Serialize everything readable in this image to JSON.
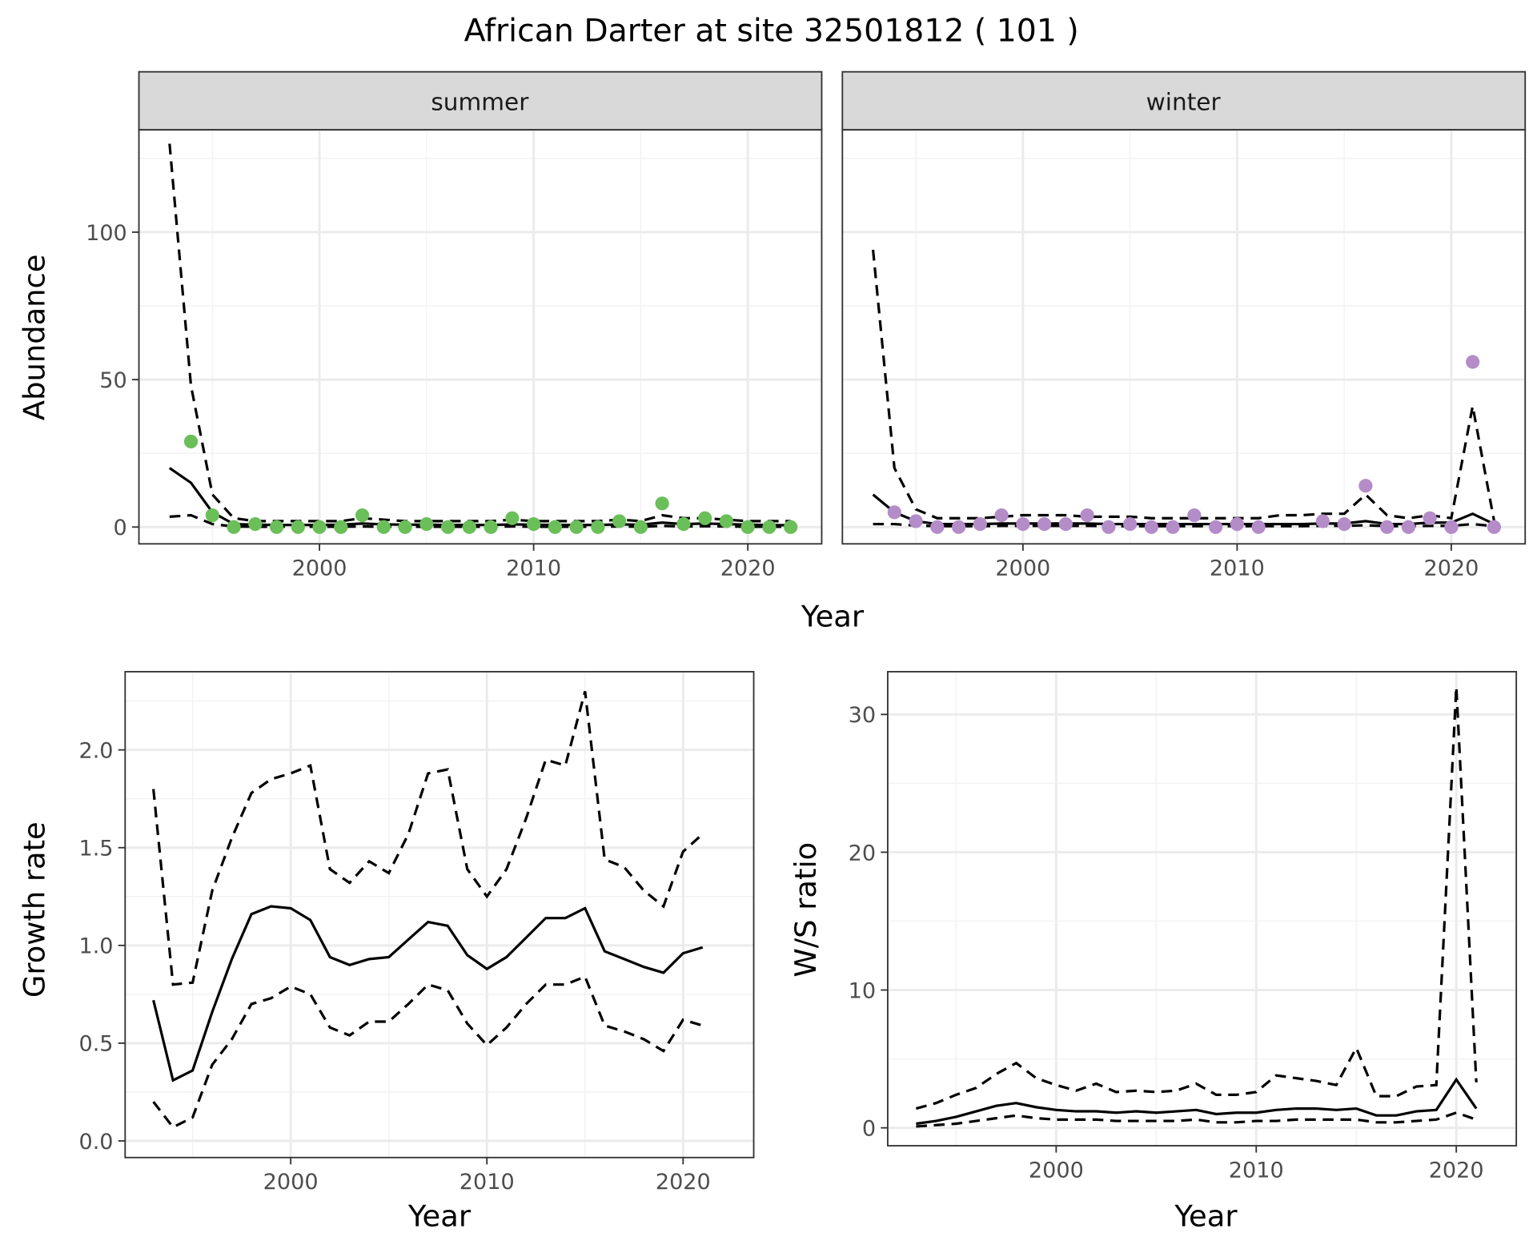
{
  "title": "African Darter at site 32501812 ( 101 )",
  "colors": {
    "summer_points": "#6abf59",
    "winter_points": "#b48cc8",
    "lines": "#000000",
    "strip_bg": "#d9d9d9",
    "grid": "#ebebeb"
  },
  "chart_data": [
    {
      "type": "scatter+line",
      "facet": "summer",
      "xlabel": "Year",
      "ylabel": "Abundance",
      "xlim": [
        1991.57,
        2023.45
      ],
      "ylim": [
        -5.7,
        134.7
      ],
      "xticks": [
        2000,
        2010,
        2020
      ],
      "yticks": [
        0,
        50,
        100
      ],
      "grid": true,
      "points": {
        "x": [
          1994,
          1995,
          1996,
          1997,
          1998,
          1999,
          2000,
          2001,
          2002,
          2003,
          2004,
          2005,
          2006,
          2007,
          2008,
          2009,
          2010,
          2011,
          2012,
          2013,
          2014,
          2015,
          2016,
          2017,
          2018,
          2019,
          2020,
          2021,
          2022
        ],
        "y": [
          29,
          4,
          0,
          1,
          0,
          0,
          0,
          0,
          4,
          0,
          0,
          1,
          0,
          0,
          0,
          3,
          1,
          0,
          0,
          0,
          2,
          0,
          8,
          1,
          3,
          2,
          0,
          0,
          0
        ]
      },
      "line_x": [
        1993,
        1994,
        1995,
        1996,
        1997,
        1998,
        1999,
        2000,
        2001,
        2002,
        2003,
        2004,
        2005,
        2006,
        2007,
        2008,
        2009,
        2010,
        2011,
        2012,
        2013,
        2014,
        2015,
        2016,
        2017,
        2018,
        2019,
        2020,
        2021,
        2022
      ],
      "estimate": [
        20,
        15,
        5,
        1,
        0.8,
        0.7,
        0.7,
        0.7,
        0.8,
        1.2,
        0.9,
        0.8,
        0.8,
        0.7,
        0.7,
        0.7,
        0.9,
        0.8,
        0.7,
        0.7,
        0.7,
        0.9,
        0.8,
        1.5,
        1,
        1.2,
        1,
        0.8,
        0.7,
        0.6
      ],
      "upper": [
        130,
        48,
        11,
        3,
        2,
        2,
        2,
        2,
        2,
        3,
        2.5,
        2,
        2,
        2,
        2,
        2,
        2.5,
        2,
        2,
        2,
        2,
        2.5,
        2,
        4,
        3,
        3,
        2.5,
        2,
        2,
        2
      ],
      "lower": [
        3.5,
        4,
        1,
        0.2,
        0.1,
        0.1,
        0.1,
        0.1,
        0.1,
        0.2,
        0.1,
        0.1,
        0.1,
        0.1,
        0.1,
        0.1,
        0.2,
        0.1,
        0.1,
        0.1,
        0.1,
        0.2,
        0.1,
        0.4,
        0.2,
        0.3,
        0.2,
        0.1,
        0.1,
        0.1
      ]
    },
    {
      "type": "scatter+line",
      "facet": "winter",
      "xlabel": "Year",
      "ylabel": "Abundance",
      "xlim": [
        1991.57,
        2023.45
      ],
      "ylim": [
        -5.7,
        134.7
      ],
      "xticks": [
        2000,
        2010,
        2020
      ],
      "yticks": [
        0,
        50,
        100
      ],
      "grid": true,
      "points": {
        "x": [
          1994,
          1995,
          1996,
          1997,
          1998,
          1999,
          2000,
          2001,
          2002,
          2003,
          2004,
          2005,
          2006,
          2007,
          2008,
          2009,
          2010,
          2011,
          2014,
          2015,
          2016,
          2017,
          2018,
          2019,
          2020,
          2021,
          2022
        ],
        "y": [
          5,
          2,
          0,
          0,
          1,
          4,
          1,
          1,
          1,
          4,
          0,
          1,
          0,
          0,
          4,
          0,
          1,
          0,
          2,
          1,
          14,
          0,
          0,
          3,
          0,
          56,
          0
        ]
      },
      "line_x": [
        1993,
        1994,
        1995,
        1996,
        1997,
        1998,
        1999,
        2000,
        2001,
        2002,
        2003,
        2004,
        2005,
        2006,
        2007,
        2008,
        2009,
        2010,
        2011,
        2012,
        2013,
        2014,
        2015,
        2016,
        2017,
        2018,
        2019,
        2020,
        2021,
        2022
      ],
      "estimate": [
        11,
        5,
        2,
        1,
        1,
        1,
        1.2,
        1.2,
        1.2,
        1.2,
        1.2,
        1,
        1,
        1,
        1,
        1,
        1,
        1,
        1,
        1,
        1,
        1.2,
        1.2,
        2,
        1,
        1,
        1.5,
        1.5,
        4.5,
        1
      ],
      "upper": [
        94,
        20,
        6,
        3,
        3,
        3,
        3.5,
        4,
        4,
        4,
        3.5,
        3.5,
        3.5,
        3,
        3,
        3,
        3,
        3,
        3,
        4,
        4,
        4.5,
        4.5,
        11,
        4,
        3,
        4,
        3,
        41,
        2
      ],
      "lower": [
        1,
        1,
        0.5,
        0.3,
        0.3,
        0.3,
        0.4,
        0.4,
        0.4,
        0.4,
        0.4,
        0.3,
        0.3,
        0.3,
        0.3,
        0.3,
        0.3,
        0.3,
        0.3,
        0.3,
        0.3,
        0.4,
        0.4,
        0.6,
        0.3,
        0.3,
        0.4,
        0.4,
        1,
        0.3
      ]
    },
    {
      "type": "line",
      "xlabel": "Year",
      "ylabel": "Growth rate",
      "xlim": [
        1991.56,
        2023.6
      ],
      "ylim": [
        -0.085,
        2.4
      ],
      "xticks": [
        2000,
        2010,
        2020
      ],
      "yticks": [
        0.0,
        0.5,
        1.0,
        1.5,
        2.0
      ],
      "grid": true,
      "line_x": [
        1993,
        1994,
        1995,
        1996,
        1997,
        1998,
        1999,
        2000,
        2001,
        2002,
        2003,
        2004,
        2005,
        2006,
        2007,
        2008,
        2009,
        2010,
        2011,
        2012,
        2013,
        2014,
        2015,
        2016,
        2017,
        2018,
        2019,
        2020,
        2021
      ],
      "estimate": [
        0.72,
        0.31,
        0.36,
        0.66,
        0.93,
        1.16,
        1.2,
        1.19,
        1.13,
        0.94,
        0.9,
        0.93,
        0.94,
        1.03,
        1.12,
        1.1,
        0.95,
        0.88,
        0.94,
        1.04,
        1.14,
        1.14,
        1.19,
        0.97,
        0.93,
        0.89,
        0.86,
        0.96,
        0.99
      ],
      "upper": [
        1.8,
        0.8,
        0.81,
        1.28,
        1.55,
        1.78,
        1.85,
        1.88,
        1.92,
        1.39,
        1.32,
        1.43,
        1.37,
        1.57,
        1.88,
        1.9,
        1.39,
        1.25,
        1.39,
        1.65,
        1.95,
        1.92,
        2.3,
        1.44,
        1.4,
        1.28,
        1.2,
        1.48,
        1.57
      ],
      "lower": [
        0.2,
        0.07,
        0.12,
        0.39,
        0.52,
        0.7,
        0.73,
        0.79,
        0.75,
        0.58,
        0.54,
        0.61,
        0.61,
        0.7,
        0.8,
        0.77,
        0.6,
        0.49,
        0.58,
        0.7,
        0.8,
        0.8,
        0.84,
        0.59,
        0.56,
        0.52,
        0.46,
        0.62,
        0.59
      ]
    },
    {
      "type": "line",
      "xlabel": "Year",
      "ylabel": "W/S ratio",
      "xlim": [
        1991.58,
        2023.0
      ],
      "ylim": [
        -1.3,
        33.1
      ],
      "xticks": [
        2000,
        2010,
        2020
      ],
      "yticks": [
        0,
        10,
        20,
        30
      ],
      "grid": true,
      "line_x": [
        1993,
        1994,
        1995,
        1996,
        1997,
        1998,
        1999,
        2000,
        2001,
        2002,
        2003,
        2004,
        2005,
        2006,
        2007,
        2008,
        2009,
        2010,
        2011,
        2012,
        2013,
        2014,
        2015,
        2016,
        2017,
        2018,
        2019,
        2020,
        2021
      ],
      "estimate": [
        0.3,
        0.5,
        0.8,
        1.2,
        1.6,
        1.8,
        1.5,
        1.3,
        1.2,
        1.2,
        1.1,
        1.2,
        1.1,
        1.2,
        1.3,
        1.0,
        1.1,
        1.1,
        1.3,
        1.4,
        1.4,
        1.3,
        1.4,
        0.9,
        0.9,
        1.2,
        1.3,
        3.5,
        1.4
      ],
      "upper": [
        1.4,
        1.8,
        2.4,
        2.9,
        3.9,
        4.7,
        3.6,
        3.1,
        2.7,
        3.2,
        2.6,
        2.7,
        2.6,
        2.7,
        3.2,
        2.4,
        2.4,
        2.6,
        3.8,
        3.6,
        3.4,
        3.1,
        5.8,
        2.3,
        2.3,
        3.0,
        3.1,
        32,
        3.3
      ],
      "lower": [
        0.1,
        0.2,
        0.3,
        0.5,
        0.7,
        0.9,
        0.7,
        0.6,
        0.6,
        0.6,
        0.5,
        0.5,
        0.5,
        0.5,
        0.6,
        0.4,
        0.4,
        0.5,
        0.5,
        0.6,
        0.6,
        0.6,
        0.6,
        0.4,
        0.4,
        0.5,
        0.6,
        1.1,
        0.6
      ]
    }
  ]
}
